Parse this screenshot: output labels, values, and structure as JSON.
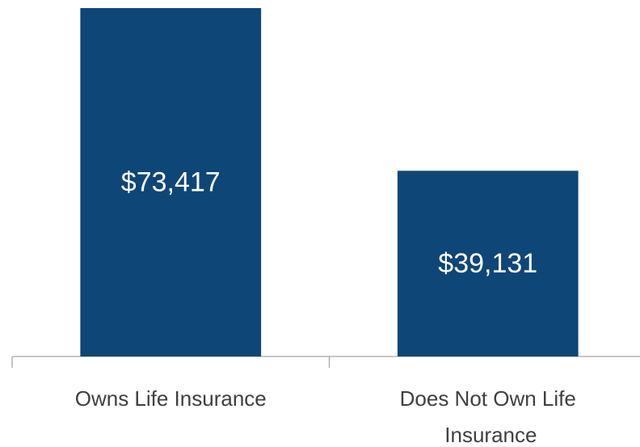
{
  "chart_data": {
    "type": "bar",
    "categories": [
      "Owns Life Insurance",
      "Does Not Own Life Insurance"
    ],
    "values": [
      73417,
      39131
    ],
    "value_labels": [
      "$73,417",
      "$39,131"
    ],
    "color": "#0e4677"
  }
}
